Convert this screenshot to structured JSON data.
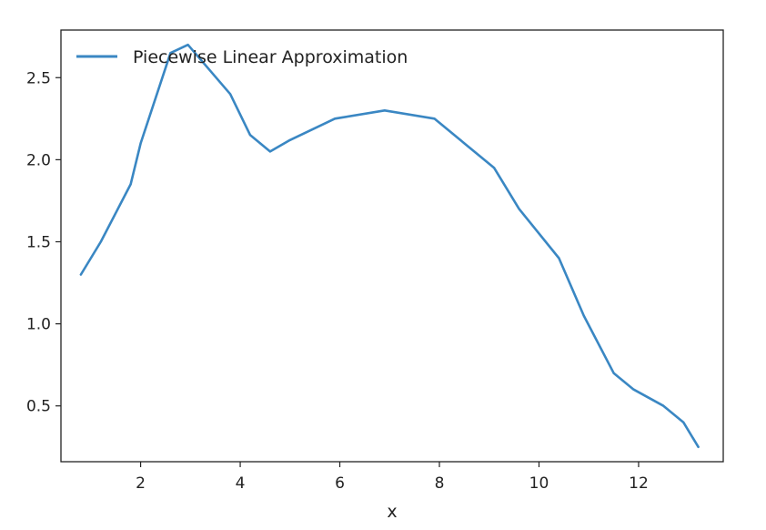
{
  "chart_data": {
    "type": "line",
    "title": "",
    "xlabel": "x",
    "ylabel": "",
    "xlim": [
      0.4,
      13.7
    ],
    "ylim": [
      0.16,
      2.79
    ],
    "grid": false,
    "legend_position": "top-left",
    "x_ticks": [
      2,
      4,
      6,
      8,
      10,
      12
    ],
    "y_ticks": [
      0.5,
      1.0,
      1.5,
      2.0,
      2.5
    ],
    "x_tick_labels": [
      "2",
      "4",
      "6",
      "8",
      "10",
      "12"
    ],
    "y_tick_labels": [
      "0.5",
      "1.0",
      "1.5",
      "2.0",
      "2.5"
    ],
    "series": [
      {
        "name": "Piecewise Linear Approximation",
        "color": "#3a87c3",
        "x": [
          0.8,
          1.2,
          1.8,
          2.0,
          2.6,
          2.95,
          3.8,
          4.2,
          4.6,
          5.0,
          5.9,
          6.9,
          7.9,
          9.1,
          9.6,
          10.4,
          10.9,
          11.5,
          11.9,
          12.5,
          12.9,
          13.2
        ],
        "y": [
          1.3,
          1.5,
          1.85,
          2.1,
          2.65,
          2.7,
          2.4,
          2.15,
          2.05,
          2.12,
          2.25,
          2.3,
          2.25,
          1.95,
          1.7,
          1.4,
          1.05,
          0.7,
          0.6,
          0.5,
          0.4,
          0.25
        ]
      }
    ]
  }
}
